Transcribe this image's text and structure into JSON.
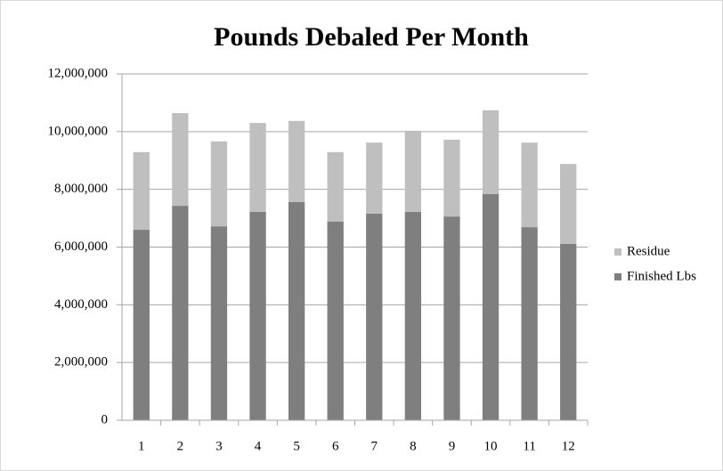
{
  "chart_data": {
    "type": "stacked_bar",
    "title": "Pounds Debaled Per Month",
    "categories": [
      "1",
      "2",
      "3",
      "4",
      "5",
      "6",
      "7",
      "8",
      "9",
      "10",
      "11",
      "12"
    ],
    "series": [
      {
        "name": "Finished Lbs",
        "color": "#7f7f7f",
        "values": [
          6600000,
          7430000,
          6720000,
          7220000,
          7560000,
          6880000,
          7160000,
          7220000,
          7060000,
          7840000,
          6690000,
          6110000
        ]
      },
      {
        "name": "Residue",
        "color": "#bfbfbf",
        "values": [
          2690000,
          3210000,
          2940000,
          3080000,
          2810000,
          2410000,
          2460000,
          2810000,
          2660000,
          2900000,
          2930000,
          2770000
        ]
      }
    ],
    "ylim": [
      0,
      12000000
    ],
    "yticks": [
      {
        "value": 0,
        "label": "0"
      },
      {
        "value": 2000000,
        "label": "2,000,000"
      },
      {
        "value": 4000000,
        "label": "4,000,000"
      },
      {
        "value": 6000000,
        "label": "6,000,000"
      },
      {
        "value": 8000000,
        "label": "8,000,000"
      },
      {
        "value": 10000000,
        "label": "10,000,000"
      },
      {
        "value": 12000000,
        "label": "12,000,000"
      }
    ],
    "grid": true,
    "legend": "right"
  }
}
